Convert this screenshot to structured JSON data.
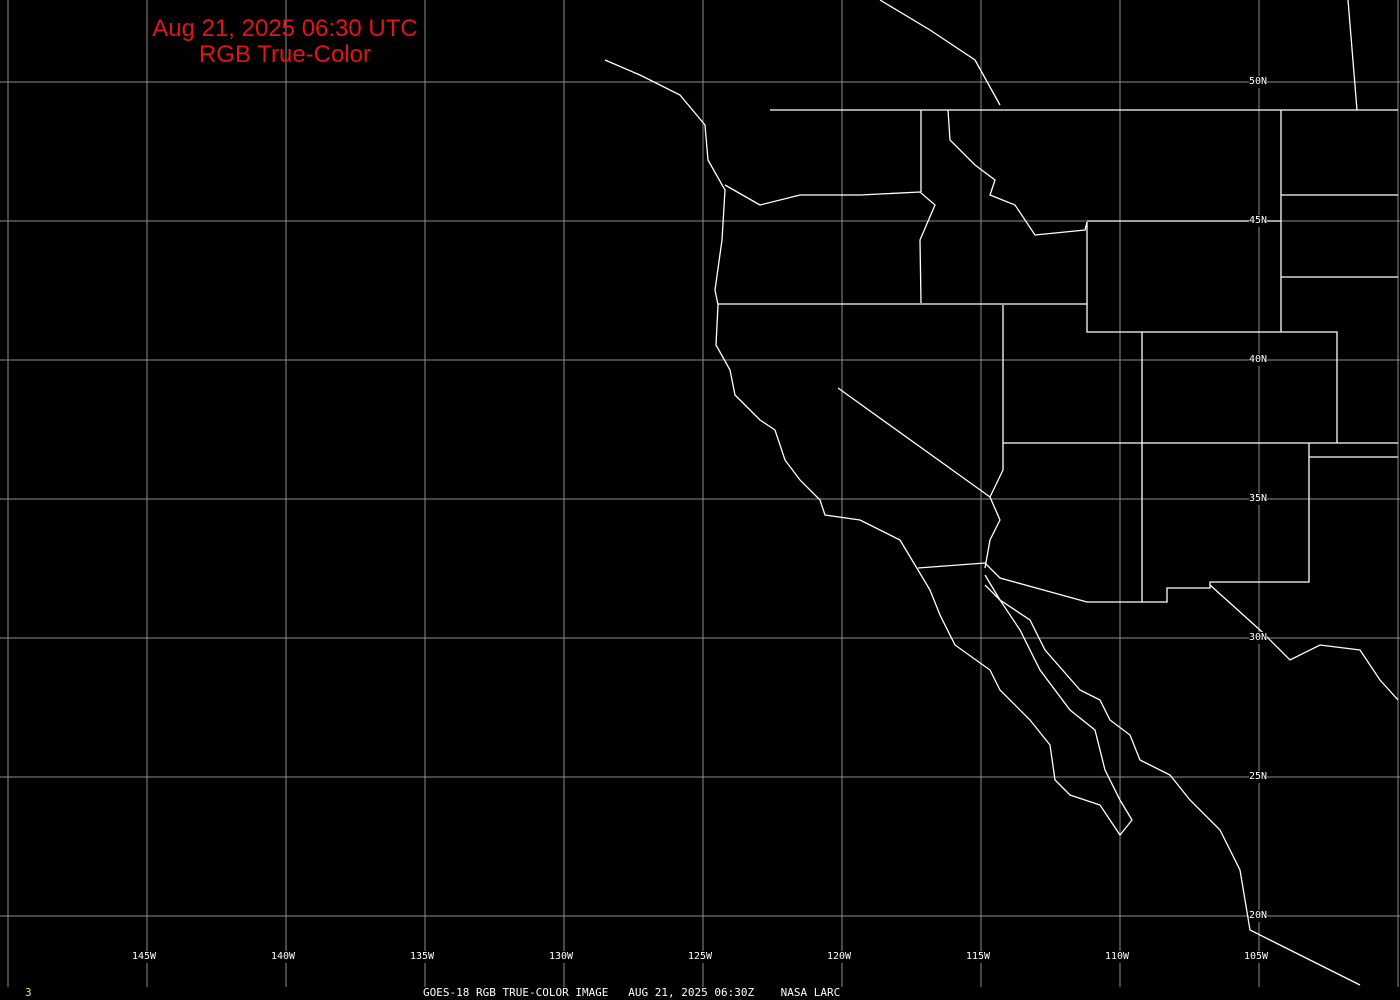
{
  "title": {
    "line1": "Aug 21, 2025 06:30 UTC",
    "line2": "RGB True-Color"
  },
  "latitude_labels": [
    "50N",
    "45N",
    "40N",
    "35N",
    "30N",
    "25N",
    "20N"
  ],
  "longitude_labels": [
    "145W",
    "140W",
    "135W",
    "130W",
    "125W",
    "120W",
    "115W",
    "110W",
    "105W"
  ],
  "footer": {
    "frame": "3",
    "caption": "GOES-18 RGB TRUE-COLOR IMAGE   AUG 21, 2025 06:30Z    NASA LARC"
  },
  "colors": {
    "title": "#e0141a",
    "grid": "#8c8c8c",
    "coastline": "#ffffff",
    "frame": "#e8e060"
  }
}
